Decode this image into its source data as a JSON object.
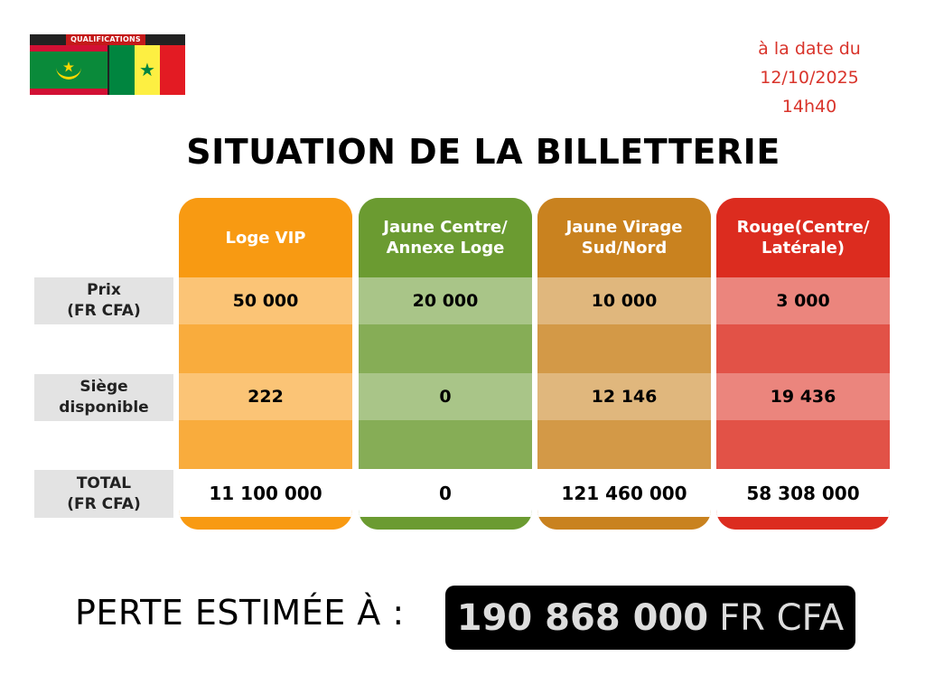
{
  "banner": {
    "text": "QUALIFICATIONS"
  },
  "date": {
    "line1": "à la date du",
    "line2": "12/10/2025",
    "line3": "14h40"
  },
  "title": "SITUATION DE LA BILLETTERIE",
  "rows": {
    "prix": "Prix\n(FR CFA)",
    "siege": "Siège\ndisponible",
    "total": "TOTAL\n(FR CFA)"
  },
  "columns": [
    {
      "name": "Loge VIP",
      "prix": "50 000",
      "siege": "222",
      "total": "11 100 000",
      "color": "#f89a12"
    },
    {
      "name": "Jaune Centre/ Annexe Loge",
      "prix": "20 000",
      "siege": "0",
      "total": "0",
      "color": "#6b9b31"
    },
    {
      "name": "Jaune Virage Sud/Nord",
      "prix": "10 000",
      "siege": "12 146",
      "total": "121 460 000",
      "color": "#c9821f"
    },
    {
      "name": "Rouge(Centre/ Latérale)",
      "prix": "3 000",
      "siege": "19 436",
      "total": "58 308 000",
      "color": "#dc2c1f"
    }
  ],
  "perte": {
    "label": "PERTE ESTIMÉE À :",
    "value": "190 868 000",
    "unit": "FR CFA"
  }
}
